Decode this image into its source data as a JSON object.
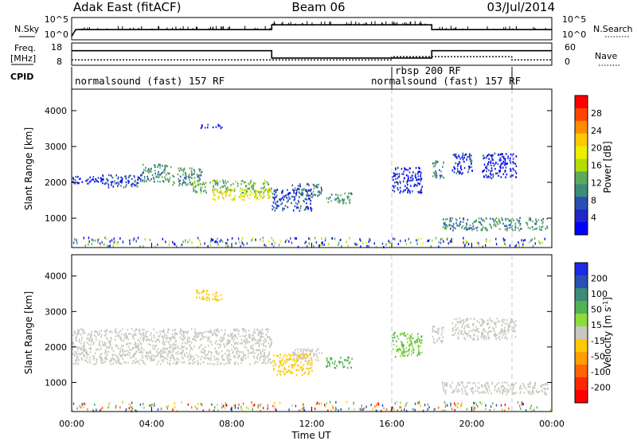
{
  "header": {
    "station": "Adak East (fitACF)",
    "beam": "Beam 06",
    "date": "03/Jul/2014"
  },
  "top_panel": {
    "left_label": "N.Sky",
    "left_ticks": [
      "10^5",
      "10^0"
    ],
    "right_label": "N.Search",
    "right_ticks": [
      "10^5",
      "10^0"
    ]
  },
  "freq_panel": {
    "left_label_1": "Freq.",
    "left_label_2": "[MHz]",
    "left_ticks": [
      "18",
      "8"
    ],
    "right_label": "Nave",
    "right_ticks": [
      "60",
      "0"
    ]
  },
  "cpid_panel": {
    "label": "CPID",
    "programs": [
      {
        "text": "normalsound (fast) 157 RF",
        "row": "lower",
        "start_hour": 0
      },
      {
        "text": "rbsp 200 RF",
        "row": "upper",
        "start_hour": 16
      },
      {
        "text": "normalsound (fast) 157 RF",
        "row": "lower",
        "start_hour": 16
      }
    ]
  },
  "time_axis": {
    "ticks": [
      "00:00",
      "04:00",
      "08:00",
      "12:00",
      "16:00",
      "20:00",
      "00:00"
    ],
    "label": "Time UT"
  },
  "range_axis": {
    "label": "Slant Range [km]",
    "ticks": [
      "1000",
      "2000",
      "3000",
      "4000"
    ]
  },
  "power_colorbar": {
    "label": "Power [dB]",
    "ticks": [
      "28",
      "24",
      "20",
      "16",
      "12",
      "8",
      "4"
    ],
    "colors": [
      "#ff0000",
      "#ff4500",
      "#ff8c00",
      "#ffc800",
      "#eeee00",
      "#b4dc00",
      "#5faa5a",
      "#3c8c78",
      "#2850b4",
      "#1e28c8",
      "#0000ff"
    ]
  },
  "velocity_colorbar": {
    "label": "Velocity [m s^-1]",
    "ticks": [
      "200",
      "100",
      "50",
      "15",
      "-15",
      "-50",
      "-100",
      "-200"
    ],
    "colors": [
      "#1e2ae0",
      "#2a50b4",
      "#3c8c78",
      "#50b450",
      "#8cdc3c",
      "#c8c8c0",
      "#ffc800",
      "#ffa000",
      "#ff6400",
      "#ff2800",
      "#ff0000"
    ]
  },
  "chart_data": {
    "type": "heatmap",
    "x_unit": "hours UT",
    "xlim": [
      0,
      24
    ],
    "ylim": [
      180,
      4600
    ],
    "y_unit": "km",
    "sky_noise_level": [
      {
        "t": 0.0,
        "v": 0.1
      },
      {
        "t": 0.2,
        "v": 0.45
      },
      {
        "t": 10.0,
        "v": 0.45
      },
      {
        "t": 10.0,
        "v": 0.7
      },
      {
        "t": 18.0,
        "v": 0.7
      },
      {
        "t": 18.0,
        "v": 0.45
      },
      {
        "t": 24.0,
        "v": 0.45
      }
    ],
    "frequency_mhz": [
      {
        "t": 0,
        "v": 14.5
      },
      {
        "t": 10,
        "v": 14.5
      },
      {
        "t": 10,
        "v": 10.2
      },
      {
        "t": 18,
        "v": 10.2
      },
      {
        "t": 18,
        "v": 14.5
      },
      {
        "t": 24,
        "v": 14.5
      }
    ],
    "nave": [
      {
        "t": 0,
        "v": 12
      },
      {
        "t": 16,
        "v": 12
      },
      {
        "t": 16,
        "v": 22
      },
      {
        "t": 18,
        "v": 22
      },
      {
        "t": 18,
        "v": 22
      },
      {
        "t": 22,
        "v": 22
      },
      {
        "t": 22,
        "v": 12
      },
      {
        "t": 24,
        "v": 12
      }
    ],
    "power_regions": [
      {
        "t0": 0.0,
        "t1": 1.8,
        "r0": 1950,
        "r1": 2150,
        "p": 6
      },
      {
        "t0": 1.5,
        "t1": 3.5,
        "r0": 1850,
        "r1": 2200,
        "p": 8
      },
      {
        "t0": 3.5,
        "t1": 5.0,
        "r0": 2000,
        "r1": 2500,
        "p": 12
      },
      {
        "t0": 5.0,
        "t1": 6.5,
        "r0": 1900,
        "r1": 2400,
        "p": 12
      },
      {
        "t0": 6.0,
        "t1": 10.0,
        "r0": 1700,
        "r1": 2050,
        "p": 14
      },
      {
        "t0": 7.0,
        "t1": 10.0,
        "r0": 1500,
        "r1": 1800,
        "p": 20
      },
      {
        "t0": 6.2,
        "t1": 7.5,
        "r0": 3500,
        "r1": 3600,
        "p": 6
      },
      {
        "t0": 10.0,
        "t1": 12.0,
        "r0": 1200,
        "r1": 1800,
        "p": 8
      },
      {
        "t0": 11.0,
        "t1": 12.5,
        "r0": 1600,
        "r1": 1950,
        "p": 10
      },
      {
        "t0": 12.7,
        "t1": 14.0,
        "r0": 1400,
        "r1": 1700,
        "p": 12
      },
      {
        "t0": 16.0,
        "t1": 17.5,
        "r0": 1700,
        "r1": 2400,
        "p": 6
      },
      {
        "t0": 18.0,
        "t1": 18.6,
        "r0": 2100,
        "r1": 2600,
        "p": 12
      },
      {
        "t0": 19.0,
        "t1": 20.0,
        "r0": 2200,
        "r1": 2800,
        "p": 8
      },
      {
        "t0": 20.5,
        "t1": 22.2,
        "r0": 2100,
        "r1": 2800,
        "p": 6
      },
      {
        "t0": 18.5,
        "t1": 23.8,
        "r0": 650,
        "r1": 1000,
        "p": 12
      }
    ],
    "velocity_regions": [
      {
        "t0": 0.0,
        "t1": 10.0,
        "r0": 1500,
        "r1": 2500,
        "v": 0
      },
      {
        "t0": 6.2,
        "t1": 7.5,
        "r0": 3300,
        "r1": 3600,
        "v": -40
      },
      {
        "t0": 10.0,
        "t1": 12.0,
        "r0": 1200,
        "r1": 1800,
        "v": -40
      },
      {
        "t0": 11.0,
        "t1": 12.5,
        "r0": 1600,
        "r1": 1950,
        "v": 0
      },
      {
        "t0": 12.7,
        "t1": 14.0,
        "r0": 1400,
        "r1": 1700,
        "v": 40
      },
      {
        "t0": 16.0,
        "t1": 17.5,
        "r0": 1700,
        "r1": 2400,
        "v": 30
      },
      {
        "t0": 18.0,
        "t1": 18.6,
        "r0": 2100,
        "r1": 2600,
        "v": 0
      },
      {
        "t0": 19.0,
        "t1": 22.2,
        "r0": 2200,
        "r1": 2800,
        "v": 0
      },
      {
        "t0": 18.5,
        "t1": 23.8,
        "r0": 650,
        "r1": 1000,
        "v": 0
      }
    ],
    "dashed_time_markers": [
      16,
      22
    ]
  }
}
